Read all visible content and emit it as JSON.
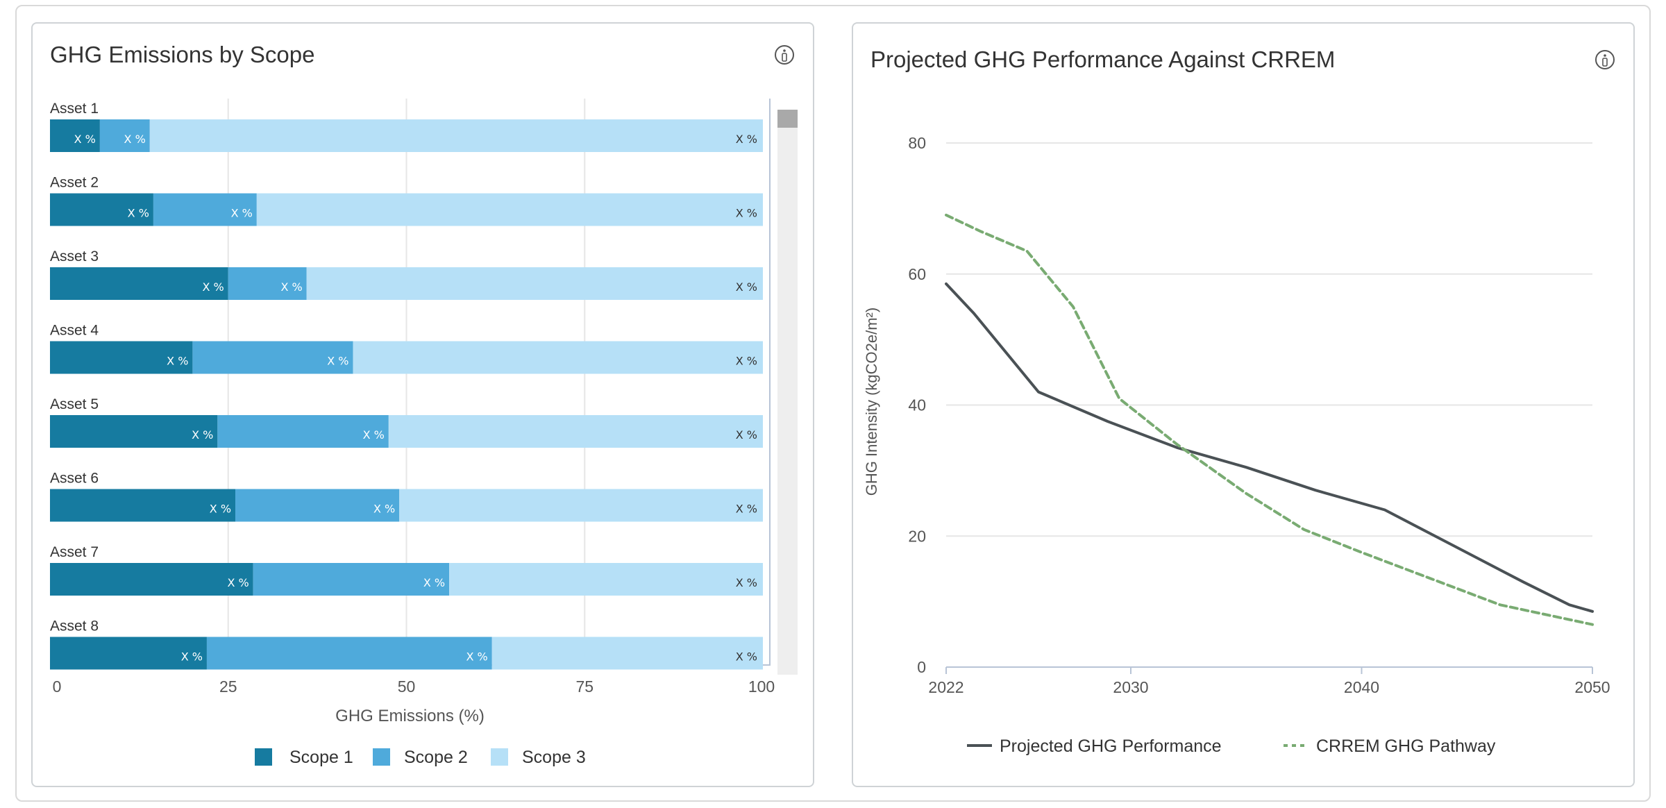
{
  "colors": {
    "scope1": "#167ba0",
    "scope2": "#4faadb",
    "scope3": "#b6e0f7",
    "line_projected": "#4a5155",
    "line_crrem": "#79ab72",
    "grid": "#e6e6e6",
    "text": "#333333",
    "axis_text": "#666666"
  },
  "left_card": {
    "title": "GHG Emissions by Scope",
    "info_icon": "info-icon"
  },
  "right_card": {
    "title": "Projected GHG Performance Against CRREM",
    "info_icon": "info-icon"
  },
  "chart_data": [
    {
      "type": "bar",
      "orientation": "horizontal",
      "stacked": true,
      "title": "GHG Emissions by Scope",
      "xlabel": "GHG Emissions (%)",
      "ylabel": "",
      "xlim": [
        0,
        100
      ],
      "xticks": [
        "0",
        "25",
        "50",
        "75",
        "100"
      ],
      "grid": true,
      "legend_position": "bottom",
      "categories": [
        "Asset 1",
        "Asset 2",
        "Asset 3",
        "Asset 4",
        "Asset 5",
        "Asset 6",
        "Asset 7",
        "Asset 8"
      ],
      "series": [
        {
          "name": "Scope 1",
          "values": [
            7,
            14.5,
            25,
            20,
            23.5,
            26,
            28.5,
            22
          ],
          "labels": [
            "X %",
            "X %",
            "X %",
            "X %",
            "X %",
            "X %",
            "X %",
            "X %"
          ]
        },
        {
          "name": "Scope 2",
          "values": [
            7,
            14.5,
            11,
            22.5,
            24,
            23,
            27.5,
            40
          ],
          "labels": [
            "X %",
            "X %",
            "X %",
            "X %",
            "X %",
            "X %",
            "X %",
            "X %"
          ]
        },
        {
          "name": "Scope 3",
          "values": [
            86,
            71,
            64,
            57.5,
            52.5,
            51,
            44,
            38
          ],
          "labels": [
            "X %",
            "X %",
            "X %",
            "X %",
            "X %",
            "X %",
            "X %",
            "X %"
          ]
        }
      ]
    },
    {
      "type": "line",
      "title": "Projected GHG Performance Against CRREM",
      "xlabel": "",
      "ylabel": "GHG Intensity (kgCO2e/m²)",
      "xlim": [
        2022,
        2050
      ],
      "ylim": [
        0,
        80
      ],
      "xticks": [
        "2022",
        "2030",
        "2040",
        "2050"
      ],
      "yticks": [
        "0",
        "20",
        "40",
        "60",
        "80"
      ],
      "grid": true,
      "legend_position": "bottom",
      "series": [
        {
          "name": "Projected GHG Performance",
          "style": "solid",
          "x": [
            2022,
            2023.2,
            2026,
            2029,
            2032,
            2035,
            2038,
            2041,
            2044,
            2047,
            2049,
            2050
          ],
          "y": [
            58.5,
            54,
            42,
            37.5,
            33.5,
            30.5,
            27,
            24,
            18.5,
            13,
            9.5,
            8.5
          ]
        },
        {
          "name": "CRREM GHG Pathway",
          "style": "dashed",
          "x": [
            2022,
            2023.5,
            2025.5,
            2027.5,
            2029.5,
            2032,
            2035,
            2037.5,
            2040,
            2043,
            2046,
            2050
          ],
          "y": [
            69,
            66.5,
            63.5,
            55,
            41,
            34,
            26.5,
            21,
            17.5,
            13.5,
            9.5,
            6.5
          ]
        }
      ]
    }
  ]
}
